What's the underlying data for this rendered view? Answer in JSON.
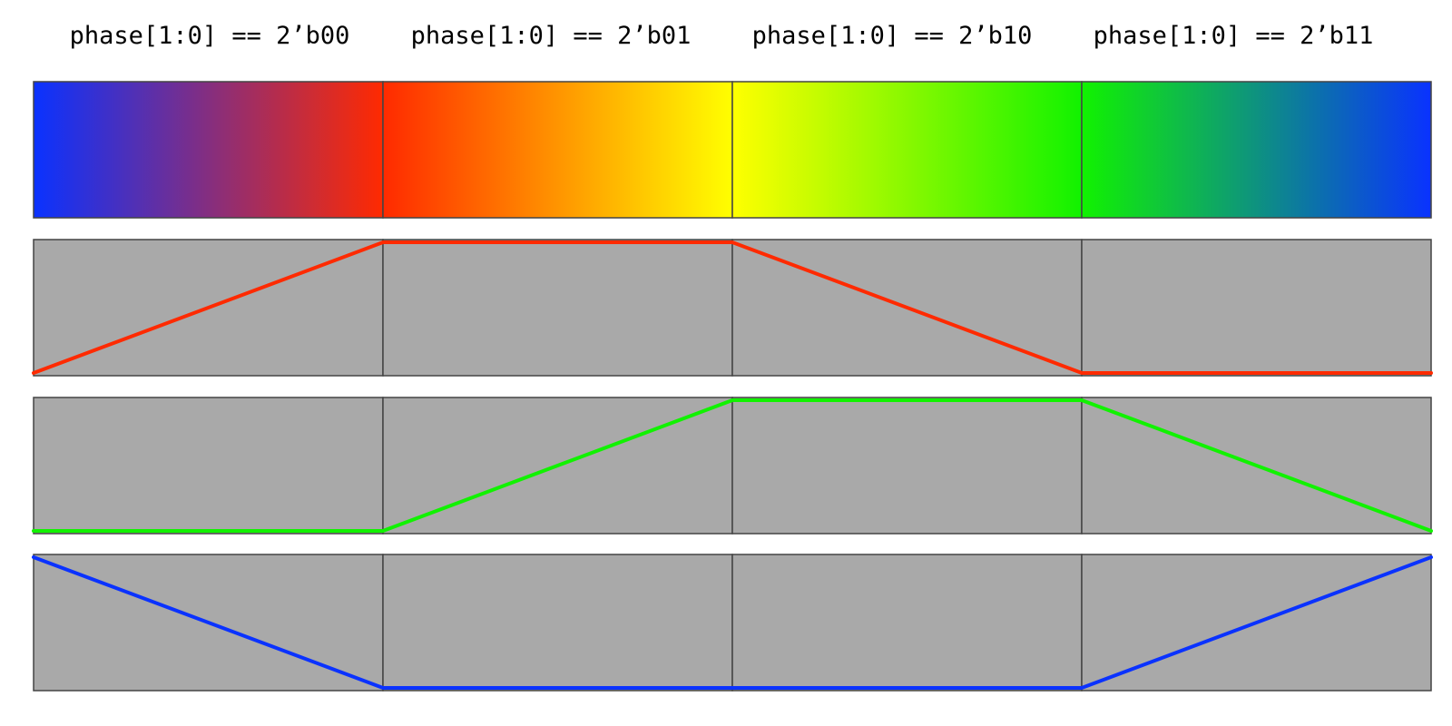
{
  "phases": [
    {
      "label": "phase[1:0] == 2’b00"
    },
    {
      "label": "phase[1:0] == 2’b01"
    },
    {
      "label": "phase[1:0] == 2’b10"
    },
    {
      "label": "phase[1:0] == 2’b11"
    }
  ],
  "colors": {
    "red": "#ff2a00",
    "green": "#11f200",
    "blue": "#0a32ff",
    "yellow": "#ffff00",
    "panel_background": "#a9a9a9",
    "border": "#444444"
  },
  "spectrum": {
    "stops": [
      "#0a32ff",
      "#ff2a00",
      "#ffff00",
      "#11f200",
      "#0a32ff"
    ]
  },
  "channels": [
    {
      "name": "red",
      "levels": [
        0,
        1,
        1,
        0,
        0
      ]
    },
    {
      "name": "green",
      "levels": [
        0,
        0,
        1,
        1,
        0
      ]
    },
    {
      "name": "blue",
      "levels": [
        1,
        0,
        0,
        0,
        1
      ]
    }
  ]
}
